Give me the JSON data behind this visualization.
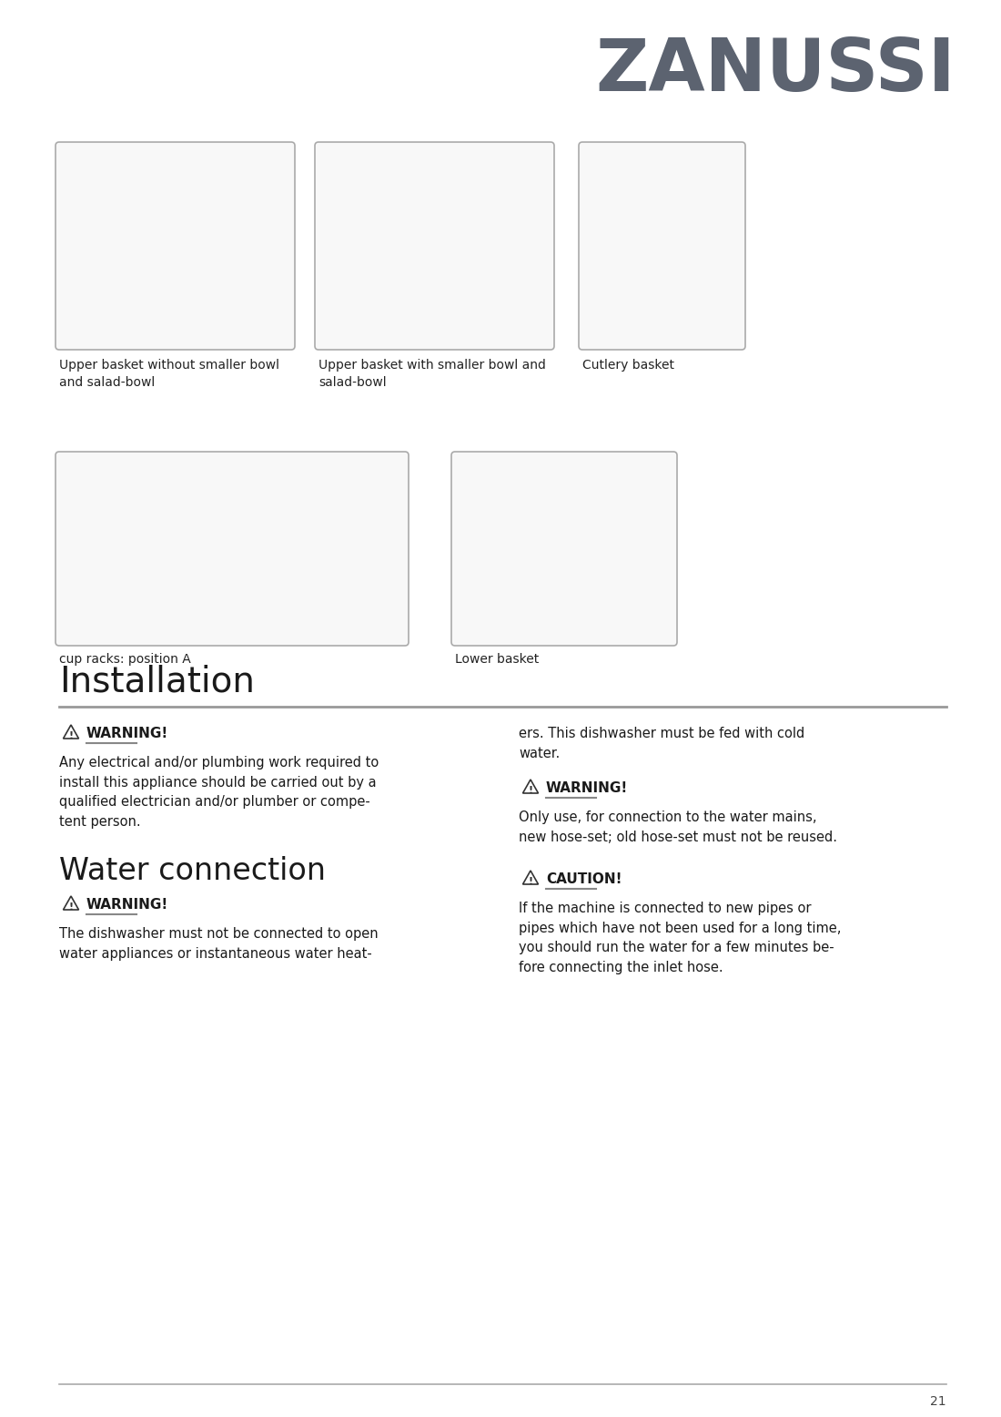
{
  "bg_color": "#ffffff",
  "logo_text": "ZANUSSI",
  "logo_color": "#5c6370",
  "logo_fontsize": 58,
  "image_captions_row1": [
    "Upper basket without smaller bowl\nand salad-bowl",
    "Upper basket with smaller bowl and\nsalad-bowl",
    "Cutlery basket"
  ],
  "image_captions_row2": [
    "cup racks: position A",
    "Lower basket"
  ],
  "section_installation_title": "Installation",
  "section_installation_fontsize": 28,
  "section_water_title": "Water connection",
  "section_water_fontsize": 24,
  "warn1_title": "WARNING!",
  "warn1_body": "Any electrical and/or plumbing work required to\ninstall this appliance should be carried out by a\nqualified electrician and/or plumber or compe-\ntent person.",
  "warn2_title": "WARNING!",
  "warn2_body": "The dishwasher must not be connected to open\nwater appliances or instantaneous water heat-",
  "warn3_body": "ers. This dishwasher must be fed with cold\nwater.",
  "warn4_title": "WARNING!",
  "warn4_body": "Only use, for connection to the water mains,\nnew hose-set; old hose-set must not be reused.",
  "caution1_title": "CAUTION!",
  "caution1_body": "If the machine is connected to new pipes or\npipes which have not been used for a long time,\nyou should run the water for a few minutes be-\nfore connecting the inlet hose.",
  "page_number": "21",
  "body_fontsize": 10.5,
  "caption_fontsize": 10.0,
  "warn_title_fontsize": 11,
  "body_color": "#1a1a1a",
  "caption_color": "#222222",
  "line_color": "#999999"
}
